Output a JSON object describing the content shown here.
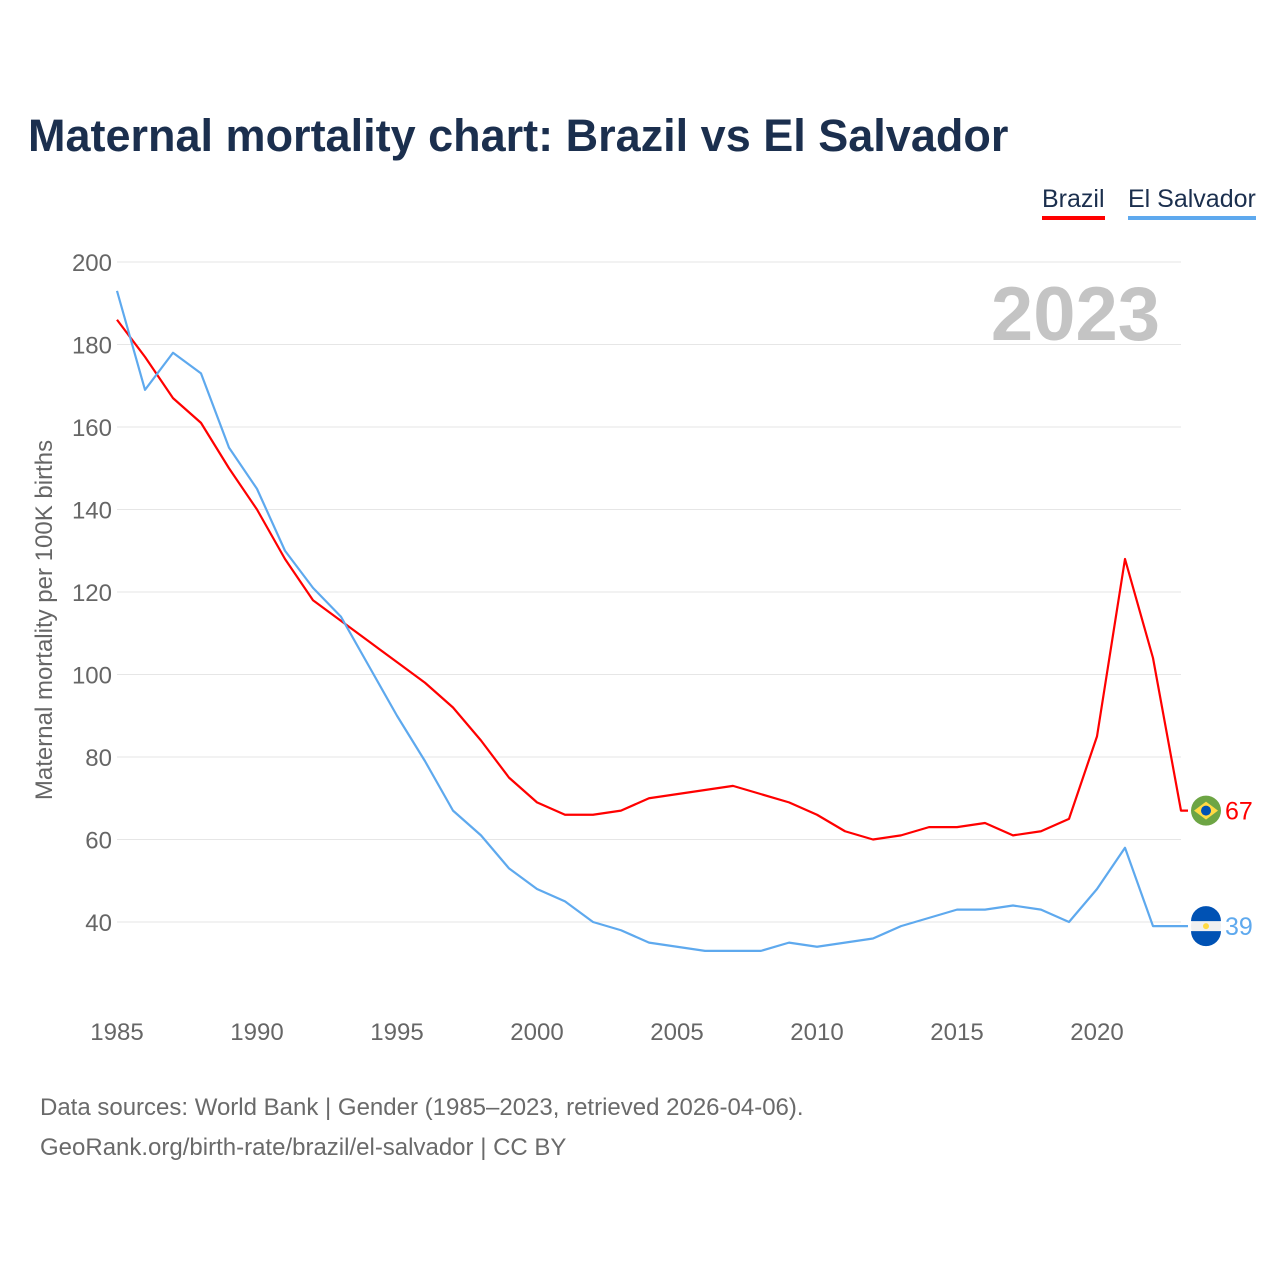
{
  "chart_data": {
    "type": "line",
    "title": "Maternal mortality chart: Brazil vs El Salvador",
    "ylabel": "Maternal mortality per 100K births",
    "xlabel": "",
    "ylim": [
      15,
      200
    ],
    "xlim": [
      1985,
      2023
    ],
    "yticks": [
      40,
      60,
      80,
      100,
      120,
      140,
      160,
      180,
      200
    ],
    "xticks": [
      1985,
      1990,
      1995,
      2000,
      2005,
      2010,
      2015,
      2020
    ],
    "year_label": "2023",
    "legend_position": "top-right",
    "x": [
      1985,
      1986,
      1987,
      1988,
      1989,
      1990,
      1991,
      1992,
      1993,
      1994,
      1995,
      1996,
      1997,
      1998,
      1999,
      2000,
      2001,
      2002,
      2003,
      2004,
      2005,
      2006,
      2007,
      2008,
      2009,
      2010,
      2011,
      2012,
      2013,
      2014,
      2015,
      2016,
      2017,
      2018,
      2019,
      2020,
      2021,
      2022,
      2023
    ],
    "series": [
      {
        "name": "Brazil",
        "color": "#ff0000",
        "end_label": "67",
        "values": [
          186,
          177,
          167,
          161,
          150,
          140,
          128,
          118,
          113,
          108,
          103,
          98,
          92,
          84,
          75,
          69,
          66,
          66,
          67,
          70,
          71,
          72,
          73,
          71,
          69,
          66,
          62,
          60,
          61,
          63,
          63,
          64,
          61,
          62,
          65,
          85,
          128,
          104,
          67
        ]
      },
      {
        "name": "El Salvador",
        "color": "#5ea9ee",
        "end_label": "39",
        "values": [
          193,
          169,
          178,
          173,
          155,
          145,
          130,
          121,
          114,
          102,
          90,
          79,
          67,
          61,
          53,
          48,
          45,
          40,
          38,
          35,
          34,
          33,
          33,
          33,
          35,
          34,
          35,
          36,
          39,
          41,
          43,
          43,
          44,
          43,
          40,
          48,
          58,
          39,
          39
        ]
      }
    ]
  },
  "footer": {
    "line1": "Data sources: World Bank | Gender (1985–2023, retrieved 2026-04-06).",
    "line2": "GeoRank.org/birth-rate/brazil/el-salvador | CC BY"
  }
}
